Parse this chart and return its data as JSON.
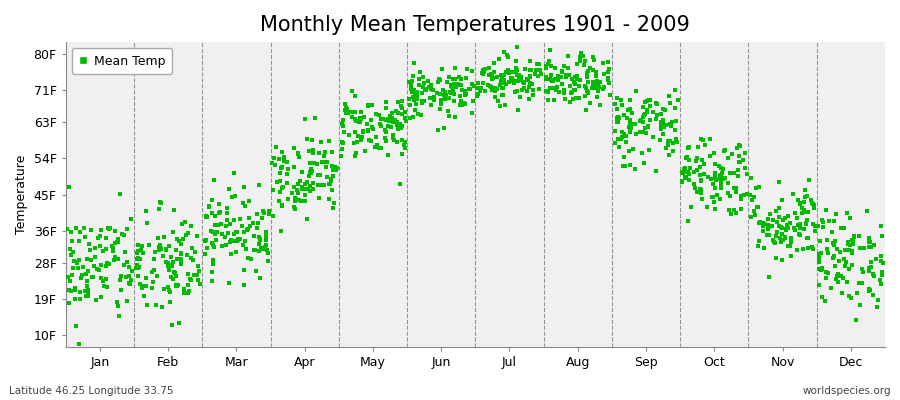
{
  "title": "Monthly Mean Temperatures 1901 - 2009",
  "ylabel": "Temperature",
  "xlabel_months": [
    "Jan",
    "Feb",
    "Mar",
    "Apr",
    "May",
    "Jun",
    "Jul",
    "Aug",
    "Sep",
    "Oct",
    "Nov",
    "Dec"
  ],
  "yticks": [
    10,
    19,
    28,
    36,
    45,
    54,
    63,
    71,
    80
  ],
  "ytick_labels": [
    "10F",
    "19F",
    "28F",
    "36F",
    "45F",
    "54F",
    "63F",
    "71F",
    "80F"
  ],
  "ylim": [
    7,
    83
  ],
  "xlim": [
    0,
    12
  ],
  "bottom_left": "Latitude 46.25 Longitude 33.75",
  "bottom_right": "worldspecies.org",
  "legend_label": "Mean Temp",
  "marker_color": "#00bb00",
  "bg_color": "#f0f0f0",
  "title_fontsize": 15,
  "axis_fontsize": 9,
  "label_fontsize": 9,
  "monthly_mean_F": [
    27,
    27,
    36,
    50,
    62,
    70,
    74,
    73,
    62,
    50,
    38,
    29
  ],
  "monthly_std_F": [
    7,
    7,
    5,
    5,
    4,
    3,
    3,
    3,
    5,
    5,
    5,
    6
  ],
  "n_years": 109,
  "seed": 42
}
